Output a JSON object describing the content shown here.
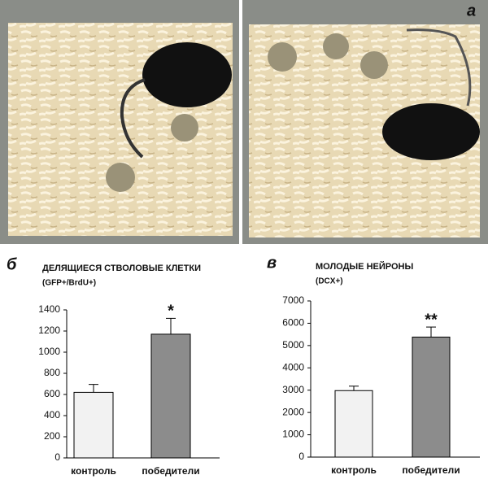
{
  "photo": {
    "panel_label": "а"
  },
  "chart_data": [
    {
      "type": "bar",
      "panel_label": "б",
      "title": "ДЕЛЯЩИЕСЯ СТВОЛОВЫЕ КЛЕТКИ",
      "subtitle": "(GFP+/BrdU+)",
      "categories": [
        "контроль",
        "победители"
      ],
      "values": [
        620,
        1170
      ],
      "errors": [
        75,
        150
      ],
      "colors": [
        "#f2f2f2",
        "#8c8c8c"
      ],
      "annotations": [
        null,
        "*"
      ],
      "ylim": [
        0,
        1400
      ],
      "yticks": [
        0,
        200,
        400,
        600,
        800,
        1000,
        1200,
        1400
      ],
      "grid": false
    },
    {
      "type": "bar",
      "panel_label": "в",
      "title": "МОЛОДЫЕ НЕЙРОНЫ",
      "subtitle": "(DCX+)",
      "categories": [
        "контроль",
        "победители"
      ],
      "values": [
        2980,
        5380
      ],
      "errors": [
        200,
        450
      ],
      "colors": [
        "#f2f2f2",
        "#8c8c8c"
      ],
      "annotations": [
        null,
        "**"
      ],
      "ylim": [
        0,
        7000
      ],
      "yticks": [
        0,
        1000,
        2000,
        3000,
        4000,
        5000,
        6000,
        7000
      ],
      "grid": false
    }
  ]
}
